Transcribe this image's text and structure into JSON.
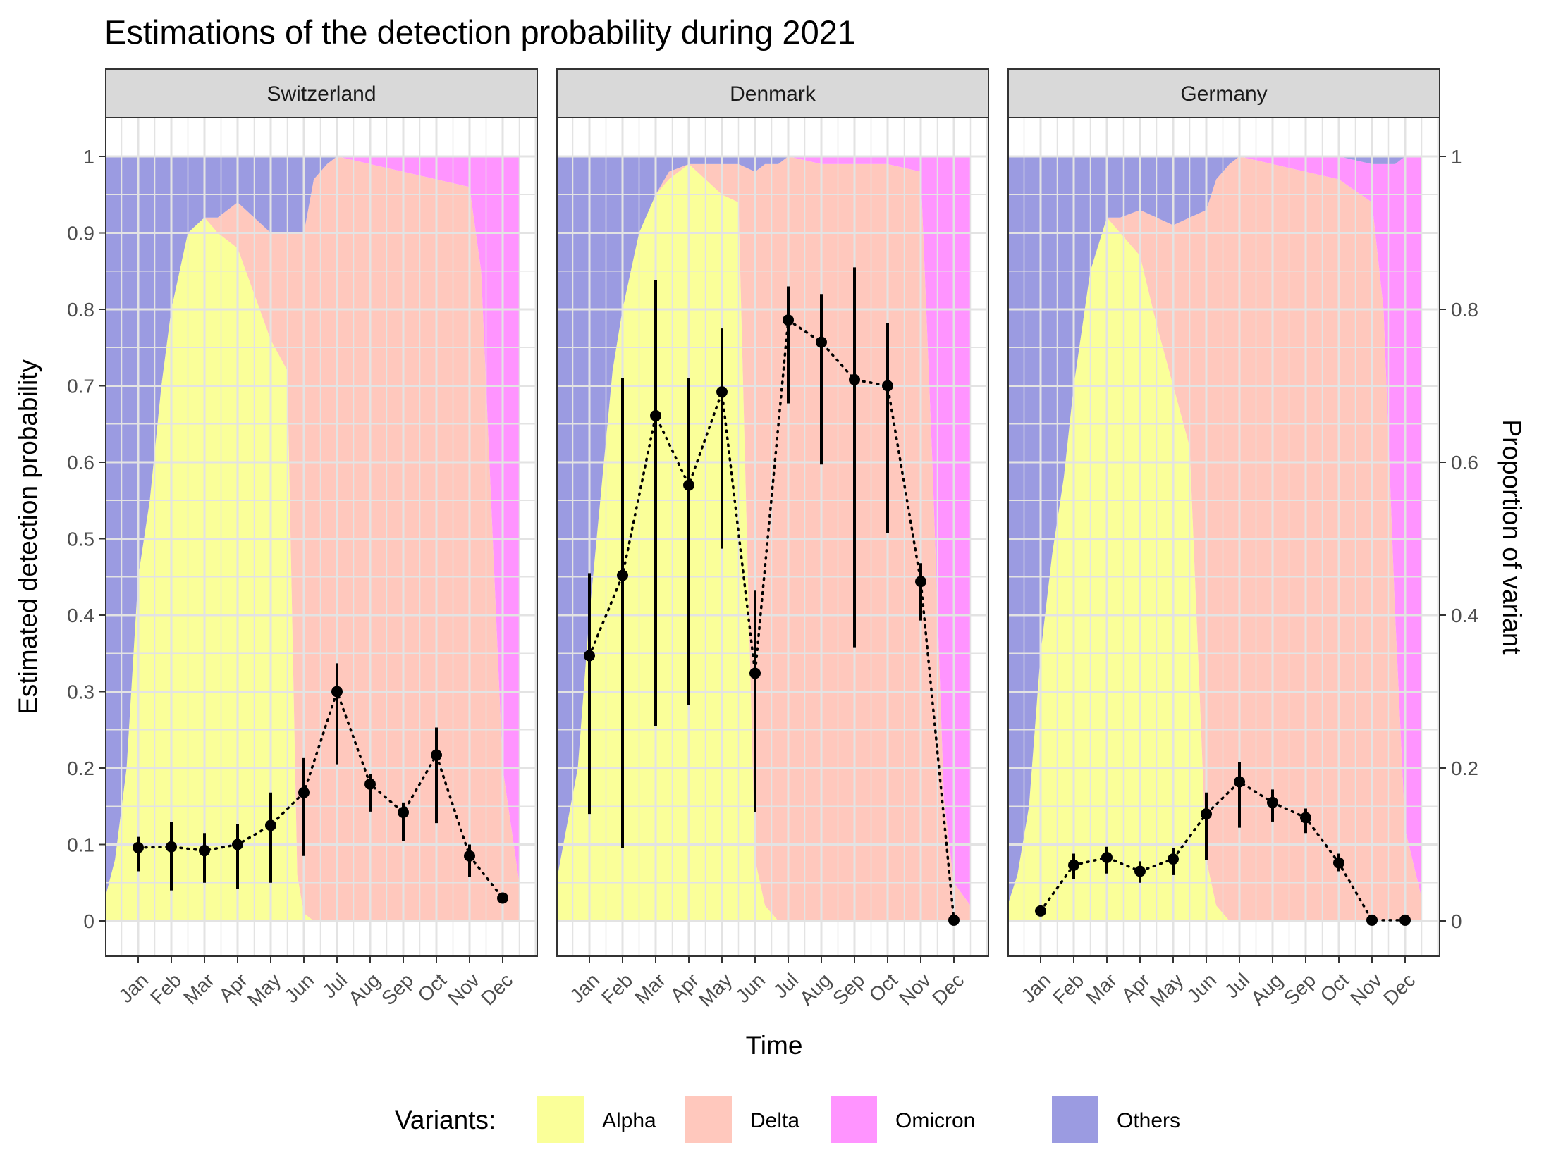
{
  "chart_data": {
    "type": "area+pointrange",
    "title": "Estimations of the detection probability during 2021",
    "xlabel": "Time",
    "ylabel": "Estimated detection probability",
    "y2label": "Proportion of variant",
    "ylim": [
      0,
      1
    ],
    "y_ticks": [
      "0",
      "0.1",
      "0.2",
      "0.3",
      "0.4",
      "0.5",
      "0.6",
      "0.7",
      "0.8",
      "0.9",
      "1"
    ],
    "y2_ticks": [
      "0",
      "0.2",
      "0.4",
      "0.6",
      "0.8",
      "1"
    ],
    "months": [
      "Jan",
      "Feb",
      "Mar",
      "Apr",
      "May",
      "Jun",
      "Jul",
      "Aug",
      "Sep",
      "Oct",
      "Nov",
      "Dec"
    ],
    "grid": true,
    "legend": {
      "title": "Variants:",
      "position": "bottom",
      "items": [
        {
          "name": "Alpha",
          "color": "#FAFF99"
        },
        {
          "name": "Delta",
          "color": "#FFC8BD"
        },
        {
          "name": "Omicron",
          "color": "#FF94FF"
        },
        {
          "name": "Others",
          "color": "#9B9BE1"
        }
      ]
    },
    "panels": [
      {
        "name": "Switzerland",
        "estimates": [
          0.096,
          0.097,
          0.092,
          0.1,
          0.125,
          0.168,
          0.3,
          0.179,
          0.142,
          0.217,
          0.085,
          0.03
        ],
        "lower": [
          0.065,
          0.04,
          0.05,
          0.042,
          0.05,
          0.085,
          0.205,
          0.143,
          0.105,
          0.128,
          0.058,
          0.025
        ],
        "upper": [
          0.11,
          0.13,
          0.115,
          0.127,
          0.168,
          0.213,
          0.337,
          0.192,
          0.155,
          0.253,
          0.1,
          0.035
        ],
        "variant_x": [
          -1.0,
          -0.7,
          -0.35,
          0,
          0.35,
          0.7,
          1.0,
          1.5,
          2.0,
          2.4,
          3.0,
          3.5,
          4.0,
          4.5,
          4.8,
          5.0,
          5.3,
          5.7,
          6.0,
          6.5,
          7.0,
          8.0,
          9.0,
          10.0,
          10.35,
          10.7,
          11.0,
          11.5
        ],
        "alpha": [
          0.03,
          0.08,
          0.2,
          0.45,
          0.55,
          0.7,
          0.8,
          0.9,
          0.92,
          0.9,
          0.88,
          0.82,
          0.76,
          0.72,
          0.06,
          0.01,
          0,
          0,
          0,
          0,
          0,
          0,
          0,
          0,
          0,
          0,
          0,
          0
        ],
        "delta": [
          0,
          0,
          0,
          0,
          0,
          0,
          0,
          0,
          0,
          0.02,
          0.06,
          0.1,
          0.14,
          0.18,
          0.84,
          0.89,
          0.97,
          0.99,
          1.0,
          0.995,
          0.99,
          0.98,
          0.97,
          0.96,
          0.85,
          0.5,
          0.2,
          0.05
        ],
        "omicron": [
          0,
          0,
          0,
          0,
          0,
          0,
          0,
          0,
          0,
          0,
          0,
          0,
          0,
          0,
          0,
          0,
          0,
          0,
          0,
          0.005,
          0.01,
          0.02,
          0.03,
          0.04,
          0.15,
          0.5,
          0.8,
          0.95
        ]
      },
      {
        "name": "Denmark",
        "estimates": [
          0.347,
          0.452,
          0.661,
          0.57,
          0.692,
          0.324,
          0.786,
          0.757,
          0.708,
          0.7,
          0.444,
          0.001
        ],
        "lower": [
          0.14,
          0.095,
          0.255,
          0.283,
          0.487,
          0.142,
          0.677,
          0.597,
          0.358,
          0.507,
          0.393,
          0.0
        ],
        "upper": [
          0.455,
          0.71,
          0.838,
          0.71,
          0.775,
          0.432,
          0.83,
          0.82,
          0.855,
          0.782,
          0.468,
          0.002
        ],
        "variant_x": [
          -1.0,
          -0.7,
          -0.35,
          0,
          0.35,
          0.7,
          1.0,
          1.5,
          2.0,
          2.4,
          3.0,
          3.5,
          4.0,
          4.5,
          5.0,
          5.3,
          5.7,
          6.0,
          6.5,
          7.0,
          8.0,
          9.0,
          10.0,
          10.35,
          10.7,
          11.0,
          11.5
        ],
        "alpha": [
          0.05,
          0.12,
          0.2,
          0.4,
          0.56,
          0.72,
          0.8,
          0.9,
          0.95,
          0.97,
          0.99,
          0.97,
          0.95,
          0.94,
          0.08,
          0.02,
          0,
          0,
          0,
          0,
          0,
          0,
          0,
          0,
          0,
          0,
          0
        ],
        "delta": [
          0,
          0,
          0,
          0,
          0,
          0,
          0,
          0,
          0,
          0.01,
          0,
          0.02,
          0.04,
          0.05,
          0.9,
          0.97,
          0.99,
          1.0,
          0.995,
          0.99,
          0.99,
          0.99,
          0.98,
          0.6,
          0.16,
          0.05,
          0.02
        ],
        "omicron": [
          0,
          0,
          0,
          0,
          0,
          0,
          0,
          0,
          0,
          0,
          0,
          0,
          0,
          0,
          0,
          0,
          0,
          0,
          0.005,
          0.01,
          0.01,
          0.01,
          0.02,
          0.4,
          0.84,
          0.95,
          0.98
        ]
      },
      {
        "name": "Germany",
        "estimates": [
          0.013,
          0.073,
          0.083,
          0.065,
          0.081,
          0.14,
          0.182,
          0.155,
          0.135,
          0.076,
          0.001,
          0.001
        ],
        "lower": [
          0.01,
          0.055,
          0.062,
          0.05,
          0.06,
          0.08,
          0.122,
          0.13,
          0.115,
          0.065,
          0.0,
          0.0
        ],
        "upper": [
          0.017,
          0.088,
          0.097,
          0.078,
          0.095,
          0.168,
          0.208,
          0.172,
          0.147,
          0.088,
          0.002,
          0.002
        ],
        "variant_x": [
          -1.0,
          -0.7,
          -0.35,
          0,
          0.35,
          0.7,
          1.0,
          1.5,
          2.0,
          2.4,
          3.0,
          3.5,
          4.0,
          4.5,
          5.0,
          5.3,
          5.7,
          6.0,
          6.5,
          7.0,
          8.0,
          9.0,
          10.0,
          10.35,
          10.7,
          11.0,
          11.5
        ],
        "alpha": [
          0.02,
          0.06,
          0.15,
          0.35,
          0.48,
          0.58,
          0.7,
          0.85,
          0.92,
          0.9,
          0.87,
          0.78,
          0.7,
          0.62,
          0.08,
          0.02,
          0,
          0,
          0,
          0,
          0,
          0,
          0,
          0,
          0,
          0,
          0
        ],
        "delta": [
          0,
          0,
          0,
          0,
          0,
          0,
          0,
          0,
          0,
          0.02,
          0.06,
          0.14,
          0.21,
          0.3,
          0.85,
          0.95,
          0.99,
          1.0,
          0.995,
          0.99,
          0.98,
          0.97,
          0.94,
          0.8,
          0.4,
          0.12,
          0.03
        ],
        "omicron": [
          0,
          0,
          0,
          0,
          0,
          0,
          0,
          0,
          0,
          0,
          0,
          0,
          0,
          0,
          0,
          0,
          0,
          0,
          0.005,
          0.01,
          0.02,
          0.03,
          0.05,
          0.19,
          0.59,
          0.88,
          0.97
        ]
      }
    ]
  }
}
